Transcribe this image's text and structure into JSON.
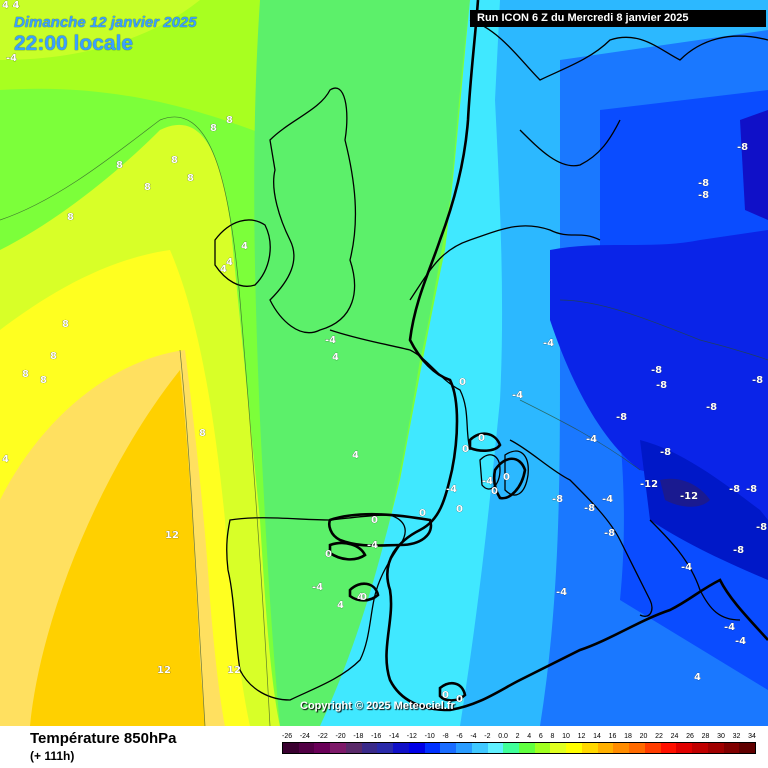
{
  "header": {
    "date": "Dimanche 12 janvier 2025",
    "time": "22:00 locale",
    "run": "Run ICON 6 Z du Mercredi 8 janvier 2025"
  },
  "copyright": "Copyright © 2025 Meteociel.fr",
  "footer": {
    "title": "Température 850hPa",
    "subtitle": "(+ 111h)"
  },
  "scale": {
    "labels": [
      "-26",
      "-24",
      "-22",
      "-20",
      "-18",
      "-16",
      "-14",
      "-12",
      "-10",
      "-8",
      "-6",
      "-4",
      "-2",
      "0.0",
      "2",
      "4",
      "6",
      "8",
      "10",
      "12",
      "14",
      "16",
      "18",
      "20",
      "22",
      "24",
      "26",
      "28",
      "30",
      "32",
      "34"
    ],
    "colors": [
      "#3a0030",
      "#520045",
      "#6a0058",
      "#7e1a6a",
      "#5a2a6a",
      "#3a2a8a",
      "#2a2aaa",
      "#1010c8",
      "#0000e6",
      "#0030ff",
      "#1a6cff",
      "#2a9cff",
      "#40c8ff",
      "#60f0ff",
      "#40ff9a",
      "#60ff40",
      "#a0ff20",
      "#e0ff20",
      "#ffff00",
      "#ffd800",
      "#ffb000",
      "#ff8c00",
      "#ff6a00",
      "#ff3c00",
      "#ff1000",
      "#e00000",
      "#c00000",
      "#a00000",
      "#800000",
      "#600000"
    ]
  },
  "map_labels": [
    {
      "text": "4 4"
    },
    {
      "text": "-4"
    },
    {
      "text": "8"
    },
    {
      "text": "8"
    },
    {
      "text": "8"
    },
    {
      "text": "8"
    },
    {
      "text": "8"
    },
    {
      "text": "8"
    },
    {
      "text": "8"
    },
    {
      "text": "4"
    },
    {
      "text": "4"
    },
    {
      "text": "4"
    },
    {
      "text": "8"
    },
    {
      "text": "8"
    },
    {
      "text": "8"
    },
    {
      "text": "8"
    },
    {
      "text": "8"
    },
    {
      "text": "-4"
    },
    {
      "text": "4"
    },
    {
      "text": "0"
    },
    {
      "text": "0"
    },
    {
      "text": "0"
    },
    {
      "text": "4"
    },
    {
      "text": "-4"
    },
    {
      "text": "-4"
    },
    {
      "text": "0"
    },
    {
      "text": "0"
    },
    {
      "text": "0"
    },
    {
      "text": "-4"
    },
    {
      "text": "0"
    },
    {
      "text": "0"
    },
    {
      "text": "-4"
    },
    {
      "text": "0"
    },
    {
      "text": "4"
    },
    {
      "text": "4"
    },
    {
      "text": "0"
    },
    {
      "text": "4"
    },
    {
      "text": "-4"
    },
    {
      "text": "-8"
    },
    {
      "text": "-8"
    },
    {
      "text": "-8"
    },
    {
      "text": "-8"
    },
    {
      "text": "-4"
    },
    {
      "text": "-4"
    },
    {
      "text": "-8"
    },
    {
      "text": "-8"
    },
    {
      "text": "-8"
    },
    {
      "text": "-8"
    },
    {
      "text": "-4"
    },
    {
      "text": "-8"
    },
    {
      "text": "-12"
    },
    {
      "text": "-12"
    },
    {
      "text": "-8"
    },
    {
      "text": "-8"
    },
    {
      "text": "-8"
    },
    {
      "text": "-8"
    },
    {
      "text": "-4"
    },
    {
      "text": "-4"
    },
    {
      "text": "-4"
    },
    {
      "text": "0"
    },
    {
      "text": "0"
    },
    {
      "text": "12"
    },
    {
      "text": "12"
    },
    {
      "text": "12"
    },
    {
      "text": "-4"
    },
    {
      "text": "4"
    },
    {
      "text": "-8"
    },
    {
      "text": "-8"
    },
    {
      "text": "-8"
    }
  ]
}
